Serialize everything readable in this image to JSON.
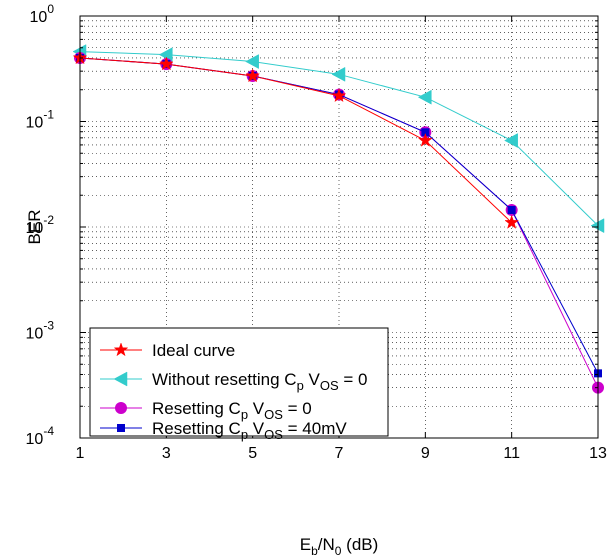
{
  "chart_data": {
    "type": "line",
    "title": "",
    "xlabel": {
      "base": "E",
      "sub1": "b",
      "mid": "/N",
      "sub2": "0",
      "tail": " (dB)"
    },
    "ylabel": "BER",
    "x_scale": "linear",
    "y_scale": "log",
    "xlim": [
      1,
      13
    ],
    "ylim": [
      0.0001,
      1
    ],
    "x_ticks": [
      1,
      3,
      5,
      7,
      9,
      11,
      13
    ],
    "x_tick_labels": [
      "1",
      "3",
      "5",
      "7",
      "9",
      "11",
      "13"
    ],
    "y_ticks": [
      {
        "exp": -4,
        "base": "10",
        "sup": "-4"
      },
      {
        "exp": -3,
        "base": "10",
        "sup": "-3"
      },
      {
        "exp": -2,
        "base": "10",
        "sup": "-2"
      },
      {
        "exp": -1,
        "base": "10",
        "sup": "-1"
      },
      {
        "exp": 0,
        "base": "10",
        "sup": "0"
      }
    ],
    "grid": true,
    "legend_position": "bottom-left",
    "x": [
      1,
      3,
      5,
      7,
      9,
      11,
      13
    ],
    "series": [
      {
        "key": "ideal",
        "legend": [
          "Ideal curve"
        ],
        "color": "#ff0000",
        "marker": "star",
        "values": [
          0.4,
          0.35,
          0.27,
          0.175,
          0.066,
          0.011,
          null
        ]
      },
      {
        "key": "without_reset",
        "legend": [
          "Without resetting C",
          {
            "sub": "p"
          },
          " V",
          {
            "sub": "OS"
          },
          " = 0"
        ],
        "color": "#33cccc",
        "marker": "triangle-left",
        "values": [
          0.46,
          0.43,
          0.37,
          0.28,
          0.17,
          0.066,
          0.0103
        ]
      },
      {
        "key": "reset_0",
        "legend": [
          "Resetting C",
          {
            "sub": "p"
          },
          " V",
          {
            "sub": "OS"
          },
          " = 0"
        ],
        "color": "#cc00cc",
        "marker": "circle",
        "values": [
          0.4,
          0.35,
          0.27,
          0.18,
          0.079,
          0.0145,
          0.0003
        ]
      },
      {
        "key": "reset_40",
        "legend": [
          "Resetting C",
          {
            "sub": "p"
          },
          " V",
          {
            "sub": "OS"
          },
          " = 40mV"
        ],
        "color": "#0000cc",
        "marker": "square",
        "values": [
          0.4,
          0.35,
          0.27,
          0.18,
          0.079,
          0.0145,
          0.00041
        ]
      }
    ]
  }
}
